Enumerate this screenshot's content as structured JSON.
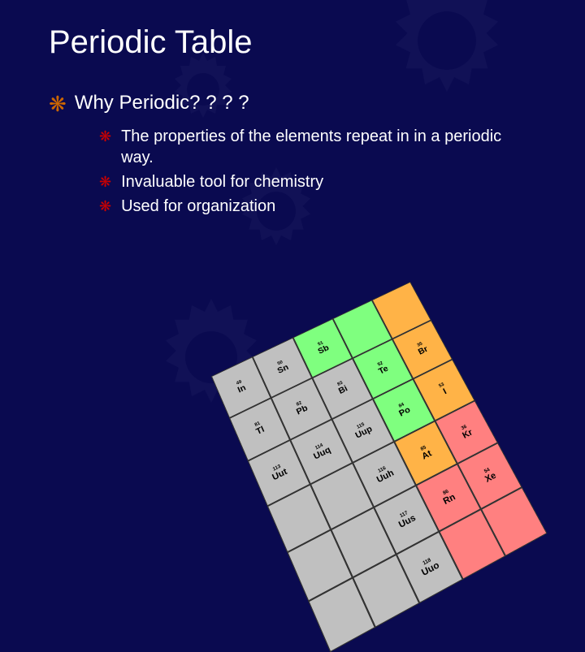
{
  "slide": {
    "title": "Periodic Table",
    "level1_text": "Why Periodic? ? ? ?",
    "bullets": [
      "The properties of the elements repeat in in a periodic way.",
      "Invaluable tool for chemistry",
      "Used for organization"
    ],
    "colors": {
      "background": "#0a0a50",
      "text": "#ffffff",
      "bullet_l1": "#cc6600",
      "bullet_l2": "#cc0000",
      "gear": "#2a2a70"
    },
    "title_fontsize": 40,
    "l1_fontsize": 24,
    "l2_fontsize": 20
  },
  "ptable": {
    "rows": [
      [
        {
          "num": "49",
          "sym": "In",
          "bg": "#c0c0c0"
        },
        {
          "num": "50",
          "sym": "Sn",
          "bg": "#c0c0c0"
        },
        {
          "num": "51",
          "sym": "Sb",
          "bg": "#7fff7f"
        },
        {
          "num": "",
          "sym": "",
          "bg": "#7fff7f"
        },
        {
          "num": "",
          "sym": "",
          "bg": "#ffb347"
        }
      ],
      [
        {
          "num": "81",
          "sym": "Tl",
          "bg": "#c0c0c0"
        },
        {
          "num": "82",
          "sym": "Pb",
          "bg": "#c0c0c0"
        },
        {
          "num": "83",
          "sym": "Bi",
          "bg": "#c0c0c0"
        },
        {
          "num": "52",
          "sym": "Te",
          "bg": "#7fff7f"
        },
        {
          "num": "35",
          "sym": "Br",
          "bg": "#ffb347"
        }
      ],
      [
        {
          "num": "113",
          "sym": "Uut",
          "bg": "#c0c0c0"
        },
        {
          "num": "114",
          "sym": "Uuq",
          "bg": "#c0c0c0"
        },
        {
          "num": "115",
          "sym": "Uup",
          "bg": "#c0c0c0"
        },
        {
          "num": "84",
          "sym": "Po",
          "bg": "#7fff7f"
        },
        {
          "num": "53",
          "sym": "I",
          "bg": "#ffb347"
        }
      ],
      [
        {
          "num": "",
          "sym": "",
          "bg": "#c0c0c0"
        },
        {
          "num": "",
          "sym": "",
          "bg": "#c0c0c0"
        },
        {
          "num": "116",
          "sym": "Uuh",
          "bg": "#c0c0c0"
        },
        {
          "num": "85",
          "sym": "At",
          "bg": "#ffb347"
        },
        {
          "num": "36",
          "sym": "Kr",
          "bg": "#ff8080"
        }
      ],
      [
        {
          "num": "",
          "sym": "",
          "bg": "#c0c0c0"
        },
        {
          "num": "",
          "sym": "",
          "bg": "#c0c0c0"
        },
        {
          "num": "117",
          "sym": "Uus",
          "bg": "#c0c0c0"
        },
        {
          "num": "86",
          "sym": "Rn",
          "bg": "#ff8080"
        },
        {
          "num": "54",
          "sym": "Xe",
          "bg": "#ff8080"
        }
      ],
      [
        {
          "num": "",
          "sym": "",
          "bg": "#c0c0c0"
        },
        {
          "num": "",
          "sym": "",
          "bg": "#c0c0c0"
        },
        {
          "num": "118",
          "sym": "Uuo",
          "bg": "#c0c0c0"
        },
        {
          "num": "",
          "sym": "",
          "bg": "#ff8080"
        },
        {
          "num": "",
          "sym": "",
          "bg": "#ff8080"
        }
      ]
    ]
  }
}
